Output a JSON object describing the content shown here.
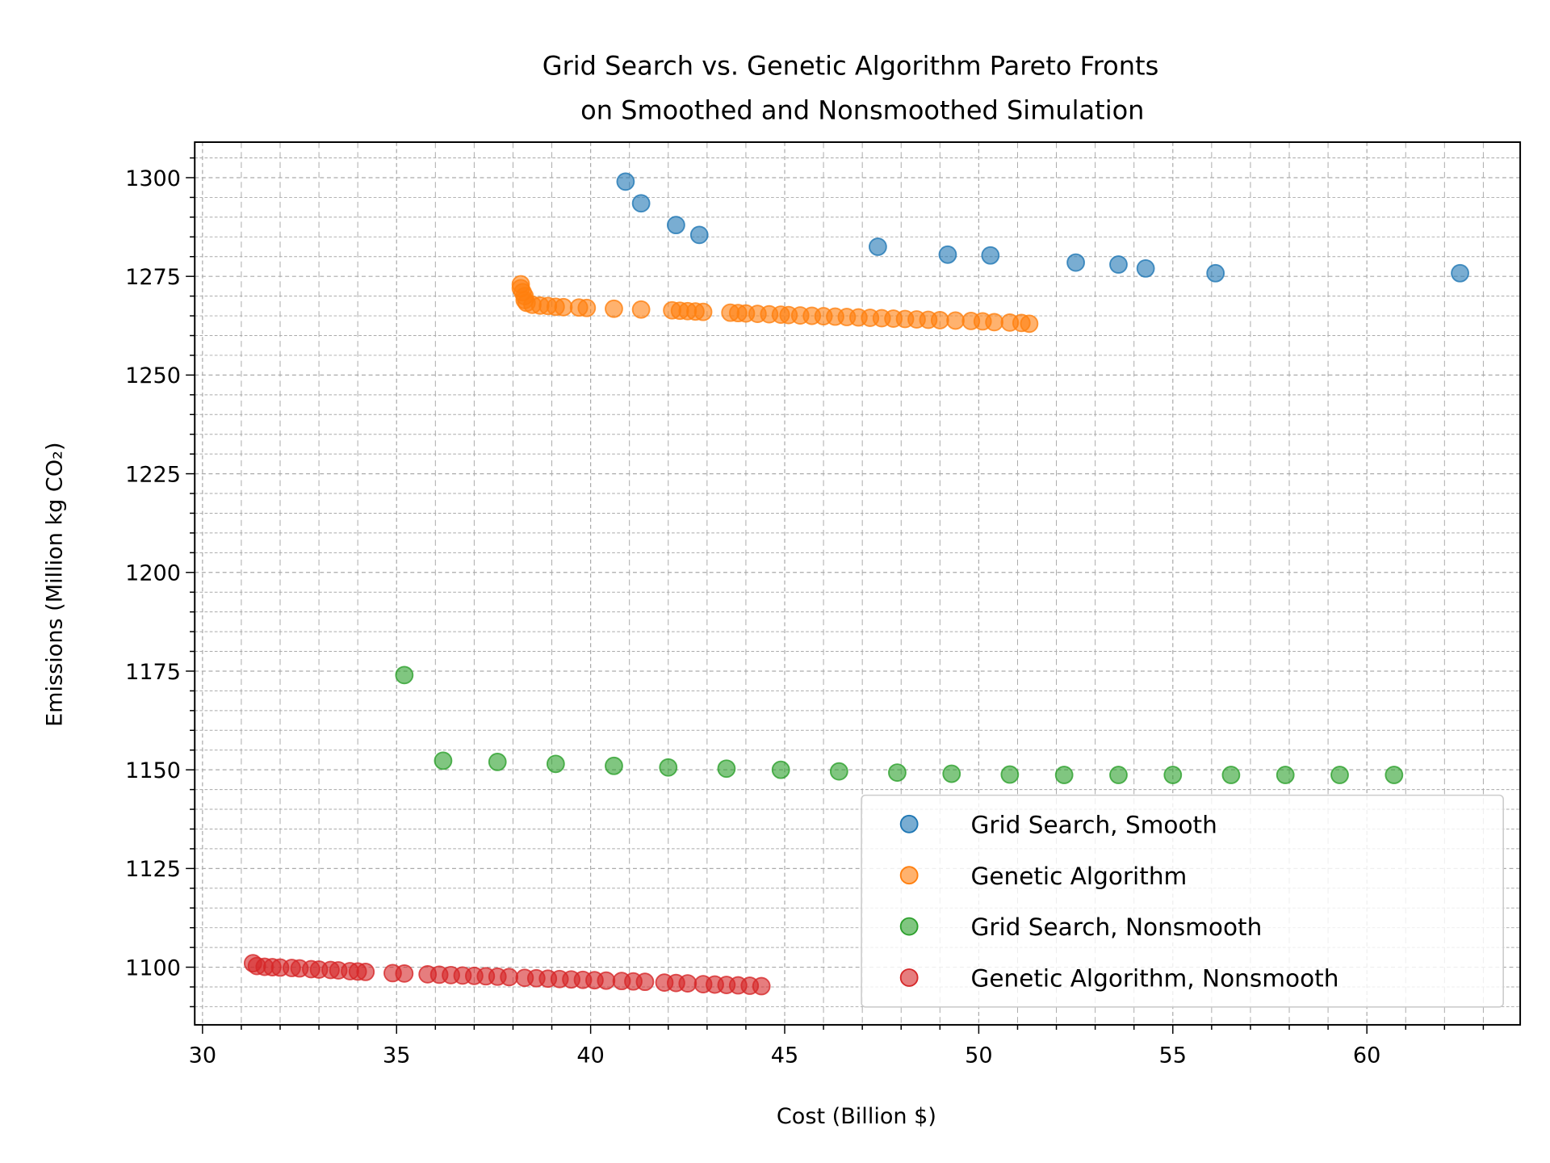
{
  "chart_data": {
    "type": "scatter",
    "title": [
      "Grid Search vs. Genetic Algorithm Pareto Fronts",
      "on Smoothed and Nonsmoothed Simulation"
    ],
    "xlabel": "Cost (Billion $)",
    "ylabel": "Emissions (Million kg CO₂)",
    "xlim": [
      29.8,
      63.95
    ],
    "ylim": [
      1085.4,
      1309
    ],
    "xticks": [
      30,
      35,
      40,
      45,
      50,
      55,
      60
    ],
    "yticks": [
      1100,
      1125,
      1150,
      1175,
      1200,
      1225,
      1250,
      1275,
      1300
    ],
    "grid": true,
    "legend_position": "lower-right",
    "series": [
      {
        "name": "Grid Search, Smooth",
        "color": "#1f77b4",
        "points": [
          [
            40.9,
            1299
          ],
          [
            41.3,
            1293.5
          ],
          [
            42.2,
            1288
          ],
          [
            42.8,
            1285.5
          ],
          [
            47.4,
            1282.5
          ],
          [
            49.2,
            1280.5
          ],
          [
            50.3,
            1280.3
          ],
          [
            52.5,
            1278.5
          ],
          [
            53.6,
            1278
          ],
          [
            54.3,
            1277
          ],
          [
            56.1,
            1275.8
          ],
          [
            62.4,
            1275.8
          ]
        ]
      },
      {
        "name": "Genetic Algorithm",
        "color": "#ff7f0e",
        "points": [
          [
            38.2,
            1273
          ],
          [
            38.2,
            1272
          ],
          [
            38.25,
            1271
          ],
          [
            38.3,
            1270
          ],
          [
            38.3,
            1269
          ],
          [
            38.35,
            1268.3
          ],
          [
            38.5,
            1267.8
          ],
          [
            38.7,
            1267.6
          ],
          [
            38.9,
            1267.5
          ],
          [
            39.1,
            1267.3
          ],
          [
            39.3,
            1267.2
          ],
          [
            39.7,
            1267.1
          ],
          [
            39.9,
            1267
          ],
          [
            40.6,
            1266.8
          ],
          [
            41.3,
            1266.6
          ],
          [
            42.1,
            1266.4
          ],
          [
            42.3,
            1266.3
          ],
          [
            42.5,
            1266.2
          ],
          [
            42.7,
            1266.1
          ],
          [
            42.9,
            1266
          ],
          [
            43.6,
            1265.8
          ],
          [
            43.8,
            1265.7
          ],
          [
            44.0,
            1265.6
          ],
          [
            44.3,
            1265.5
          ],
          [
            44.6,
            1265.4
          ],
          [
            44.9,
            1265.3
          ],
          [
            45.1,
            1265.2
          ],
          [
            45.4,
            1265.1
          ],
          [
            45.7,
            1265
          ],
          [
            46.0,
            1264.9
          ],
          [
            46.3,
            1264.8
          ],
          [
            46.6,
            1264.7
          ],
          [
            46.9,
            1264.6
          ],
          [
            47.2,
            1264.5
          ],
          [
            47.5,
            1264.4
          ],
          [
            47.8,
            1264.3
          ],
          [
            48.1,
            1264.2
          ],
          [
            48.4,
            1264.1
          ],
          [
            48.7,
            1264
          ],
          [
            49.0,
            1263.9
          ],
          [
            49.4,
            1263.8
          ],
          [
            49.8,
            1263.7
          ],
          [
            50.1,
            1263.6
          ],
          [
            50.4,
            1263.4
          ],
          [
            50.8,
            1263.3
          ],
          [
            51.1,
            1263.2
          ],
          [
            51.3,
            1263
          ]
        ]
      },
      {
        "name": "Grid Search, Nonsmooth",
        "color": "#2ca02c",
        "points": [
          [
            35.2,
            1174
          ],
          [
            36.2,
            1152.3
          ],
          [
            37.6,
            1152
          ],
          [
            39.1,
            1151.5
          ],
          [
            40.6,
            1151
          ],
          [
            42.0,
            1150.6
          ],
          [
            43.5,
            1150.3
          ],
          [
            44.9,
            1150
          ],
          [
            46.4,
            1149.6
          ],
          [
            47.9,
            1149.3
          ],
          [
            49.3,
            1149
          ],
          [
            50.8,
            1148.8
          ],
          [
            52.2,
            1148.7
          ],
          [
            53.6,
            1148.7
          ],
          [
            55.0,
            1148.7
          ],
          [
            56.5,
            1148.7
          ],
          [
            57.9,
            1148.7
          ],
          [
            59.3,
            1148.7
          ],
          [
            60.7,
            1148.7
          ]
        ]
      },
      {
        "name": "Genetic Algorithm, Nonsmooth",
        "color": "#d62728",
        "points": [
          [
            31.3,
            1101
          ],
          [
            31.4,
            1100.3
          ],
          [
            31.6,
            1100.1
          ],
          [
            31.8,
            1100
          ],
          [
            32.0,
            1099.9
          ],
          [
            32.3,
            1099.8
          ],
          [
            32.5,
            1099.7
          ],
          [
            32.8,
            1099.5
          ],
          [
            33.0,
            1099.4
          ],
          [
            33.3,
            1099.3
          ],
          [
            33.5,
            1099.2
          ],
          [
            33.8,
            1099
          ],
          [
            34.0,
            1098.9
          ],
          [
            34.2,
            1098.8
          ],
          [
            34.9,
            1098.5
          ],
          [
            35.2,
            1098.4
          ],
          [
            35.8,
            1098.2
          ],
          [
            36.1,
            1098.1
          ],
          [
            36.4,
            1098
          ],
          [
            36.7,
            1097.9
          ],
          [
            37.0,
            1097.8
          ],
          [
            37.3,
            1097.7
          ],
          [
            37.6,
            1097.6
          ],
          [
            37.9,
            1097.5
          ],
          [
            38.3,
            1097.3
          ],
          [
            38.6,
            1097.2
          ],
          [
            38.9,
            1097.1
          ],
          [
            39.2,
            1097
          ],
          [
            39.5,
            1096.9
          ],
          [
            39.8,
            1096.8
          ],
          [
            40.1,
            1096.7
          ],
          [
            40.4,
            1096.6
          ],
          [
            40.8,
            1096.5
          ],
          [
            41.1,
            1096.4
          ],
          [
            41.4,
            1096.3
          ],
          [
            41.9,
            1096.1
          ],
          [
            42.2,
            1096
          ],
          [
            42.5,
            1095.9
          ],
          [
            42.9,
            1095.7
          ],
          [
            43.2,
            1095.6
          ],
          [
            43.5,
            1095.5
          ],
          [
            43.8,
            1095.4
          ],
          [
            44.1,
            1095.3
          ],
          [
            44.4,
            1095.2
          ]
        ]
      }
    ]
  }
}
